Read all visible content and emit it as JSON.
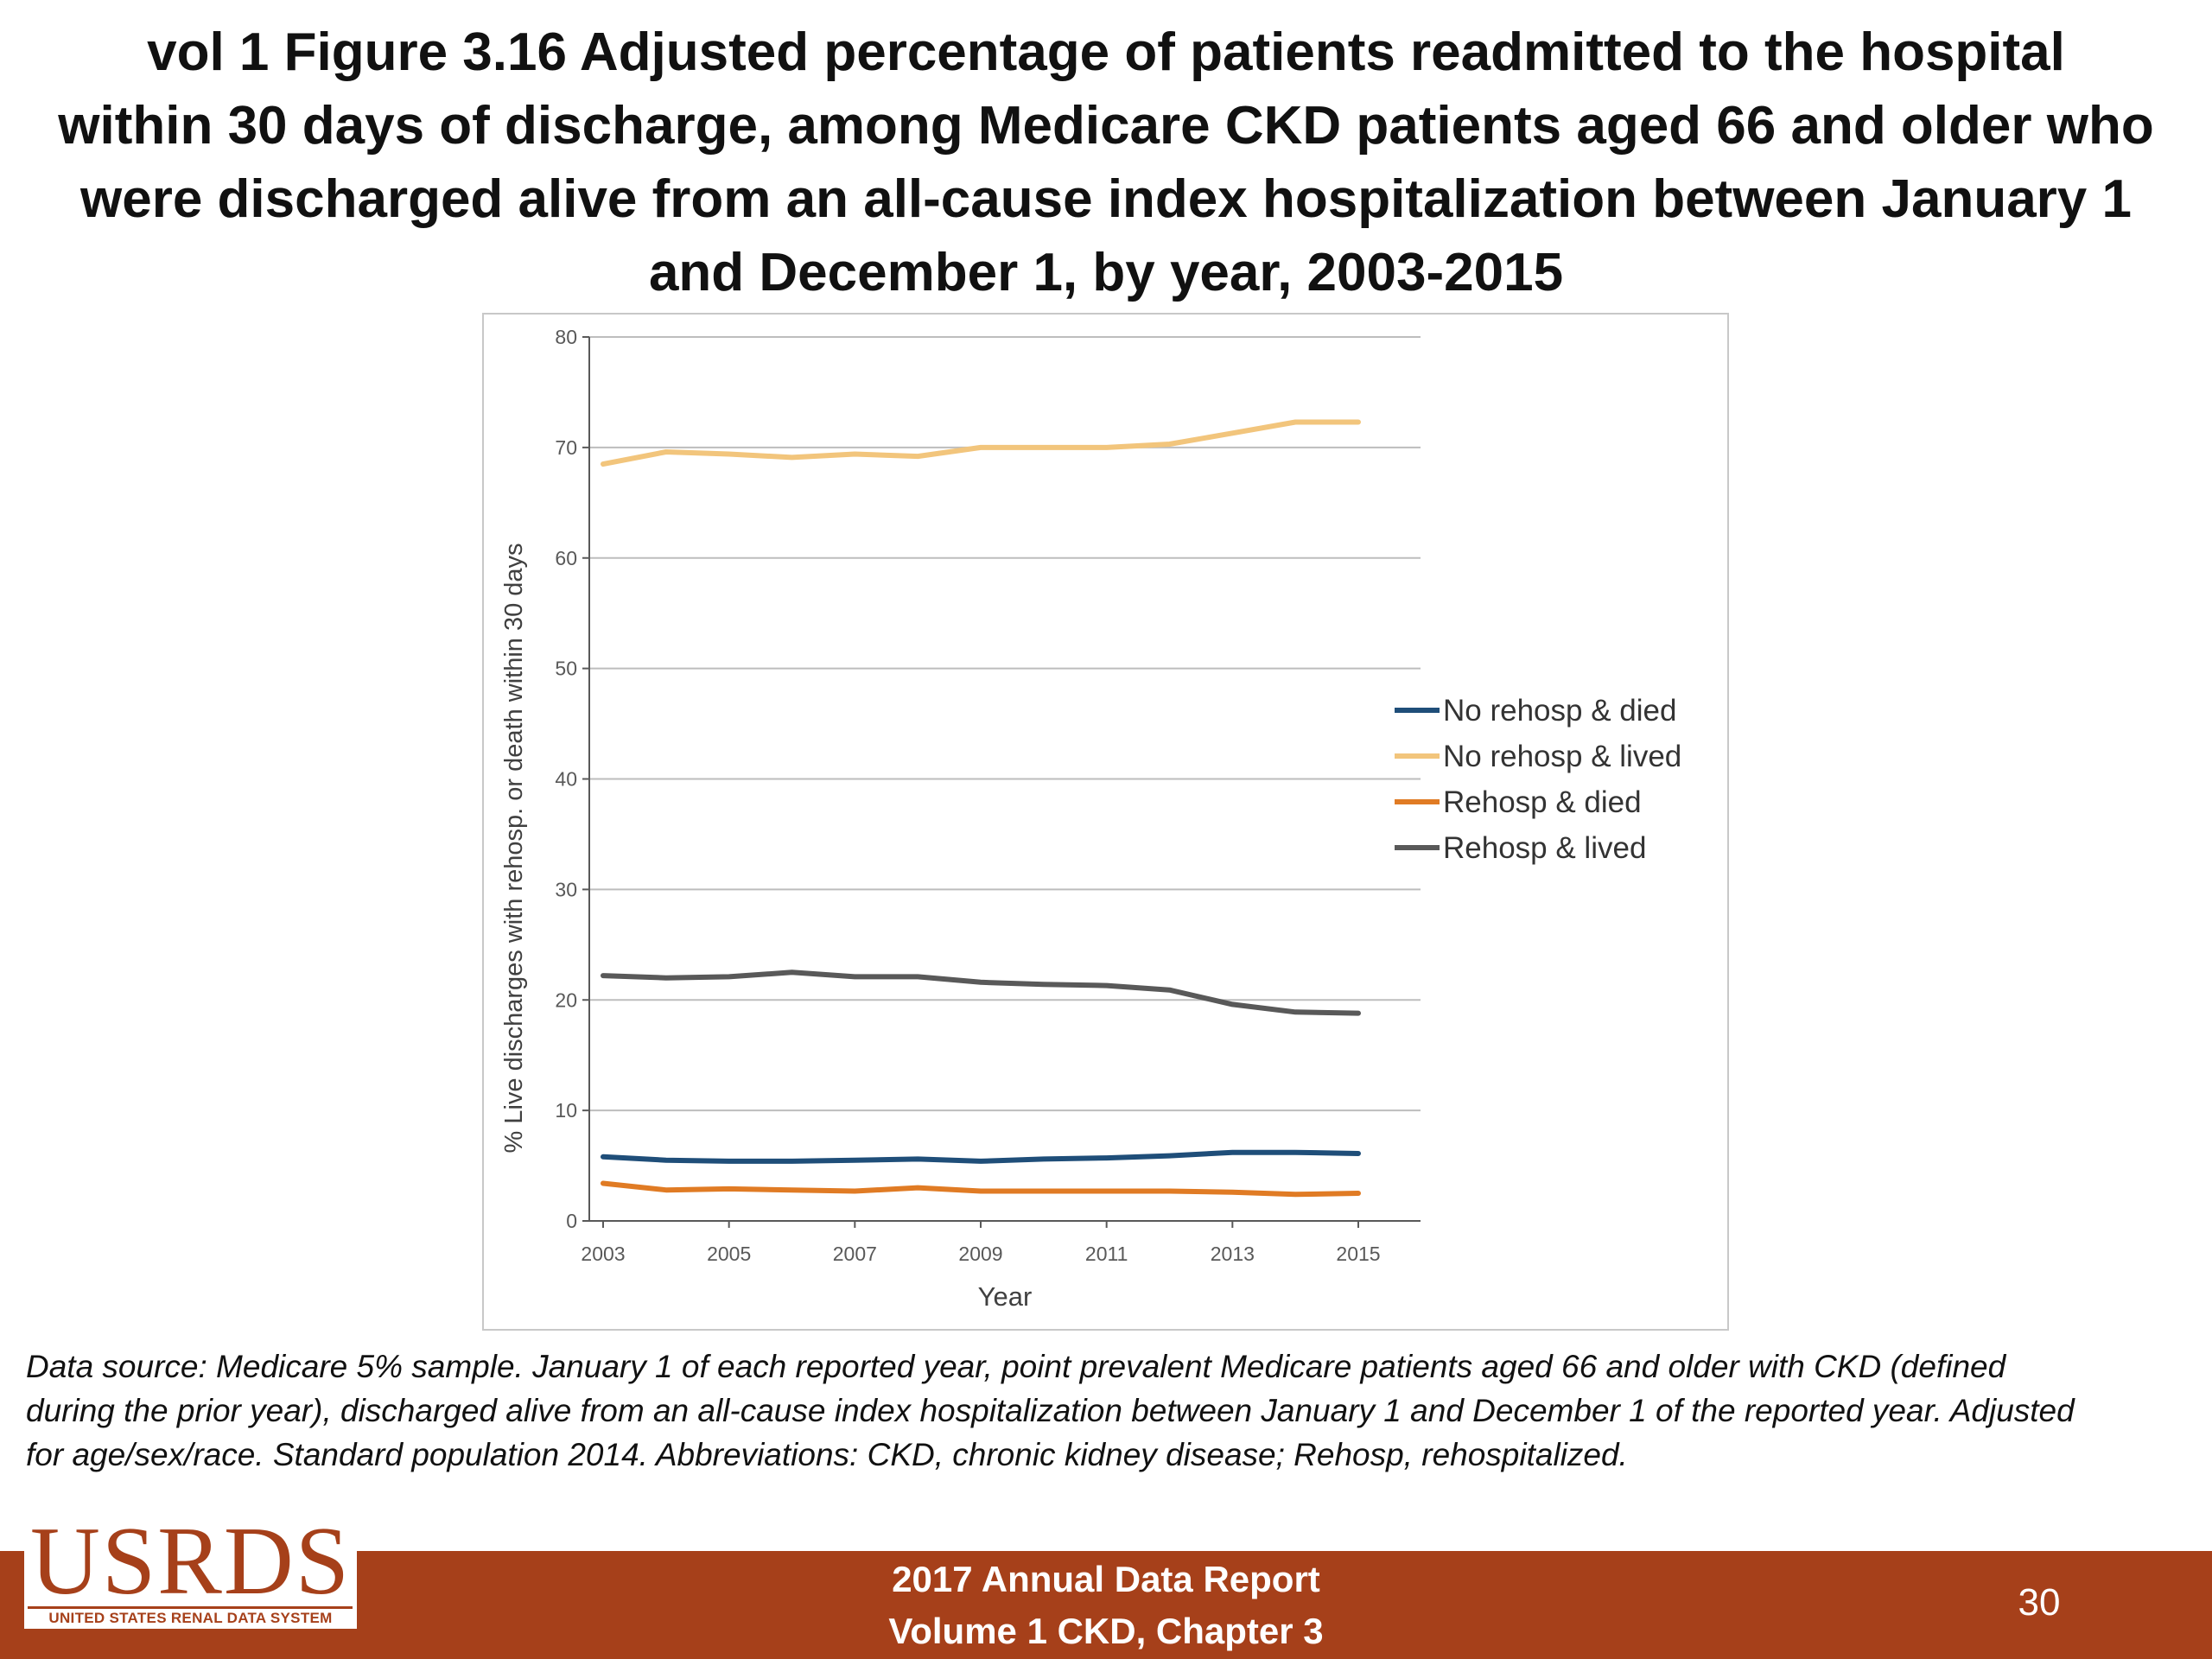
{
  "slide": {
    "title_lines": [
      "vol 1 Figure 3.16 Adjusted percentage of patients readmitted to the hospital",
      "within 30 days of discharge, among Medicare CKD patients aged 66 and older who",
      "were discharged alive from an all-cause index hospitalization between January 1",
      "and December 1, by year, 2003-2015"
    ],
    "footnote_lines": [
      "Data source: Medicare 5% sample. January 1 of each reported year, point prevalent Medicare patients aged 66 and older with CKD (defined",
      "during the prior year), discharged alive from an all-cause index hospitalization between January 1 and December 1 of the reported year. Adjusted",
      "for age/sex/race. Standard population 2014. Abbreviations: CKD, chronic kidney disease; Rehosp, rehospitalized."
    ],
    "logo": {
      "text": "USRDS",
      "subtext": "UNITED STATES RENAL DATA SYSTEM"
    },
    "footer_lines": [
      "2017 Annual Data Report",
      "Volume 1 CKD, Chapter 3"
    ],
    "page_number": "30"
  },
  "colors": {
    "footer_bar": "#a6401a",
    "gridline": "#bdbdbd",
    "axis_text": "#595959"
  },
  "chart_data": {
    "type": "line",
    "title": "",
    "xlabel": "Year",
    "ylabel": "% Live discharges with rehosp. or death within 30 days",
    "xlim": [
      2003,
      2015
    ],
    "ylim": [
      0,
      80
    ],
    "y_ticks": [
      0,
      10,
      20,
      30,
      40,
      50,
      60,
      70,
      80
    ],
    "x_ticks": [
      2003,
      2005,
      2007,
      2009,
      2011,
      2013,
      2015
    ],
    "grid": "horizontal",
    "legend_position": "right",
    "x": [
      2003,
      2004,
      2005,
      2006,
      2007,
      2008,
      2009,
      2010,
      2011,
      2012,
      2013,
      2014,
      2015
    ],
    "series": [
      {
        "name": "No rehosp & died",
        "color": "#1f4e79",
        "values": [
          5.8,
          5.5,
          5.4,
          5.4,
          5.5,
          5.6,
          5.4,
          5.6,
          5.7,
          5.9,
          6.2,
          6.2,
          6.1
        ]
      },
      {
        "name": "No rehosp & lived",
        "color": "#f2c57c",
        "values": [
          68.5,
          69.6,
          69.4,
          69.1,
          69.4,
          69.2,
          70.0,
          70.0,
          70.0,
          70.3,
          71.3,
          72.3,
          72.3
        ]
      },
      {
        "name": "Rehosp & died",
        "color": "#e07b24",
        "values": [
          3.4,
          2.8,
          2.9,
          2.8,
          2.7,
          3.0,
          2.7,
          2.7,
          2.7,
          2.7,
          2.6,
          2.4,
          2.5
        ]
      },
      {
        "name": "Rehosp & lived",
        "color": "#595959",
        "values": [
          22.2,
          22.0,
          22.1,
          22.5,
          22.1,
          22.1,
          21.6,
          21.4,
          21.3,
          20.9,
          19.6,
          18.9,
          18.8
        ]
      }
    ]
  }
}
